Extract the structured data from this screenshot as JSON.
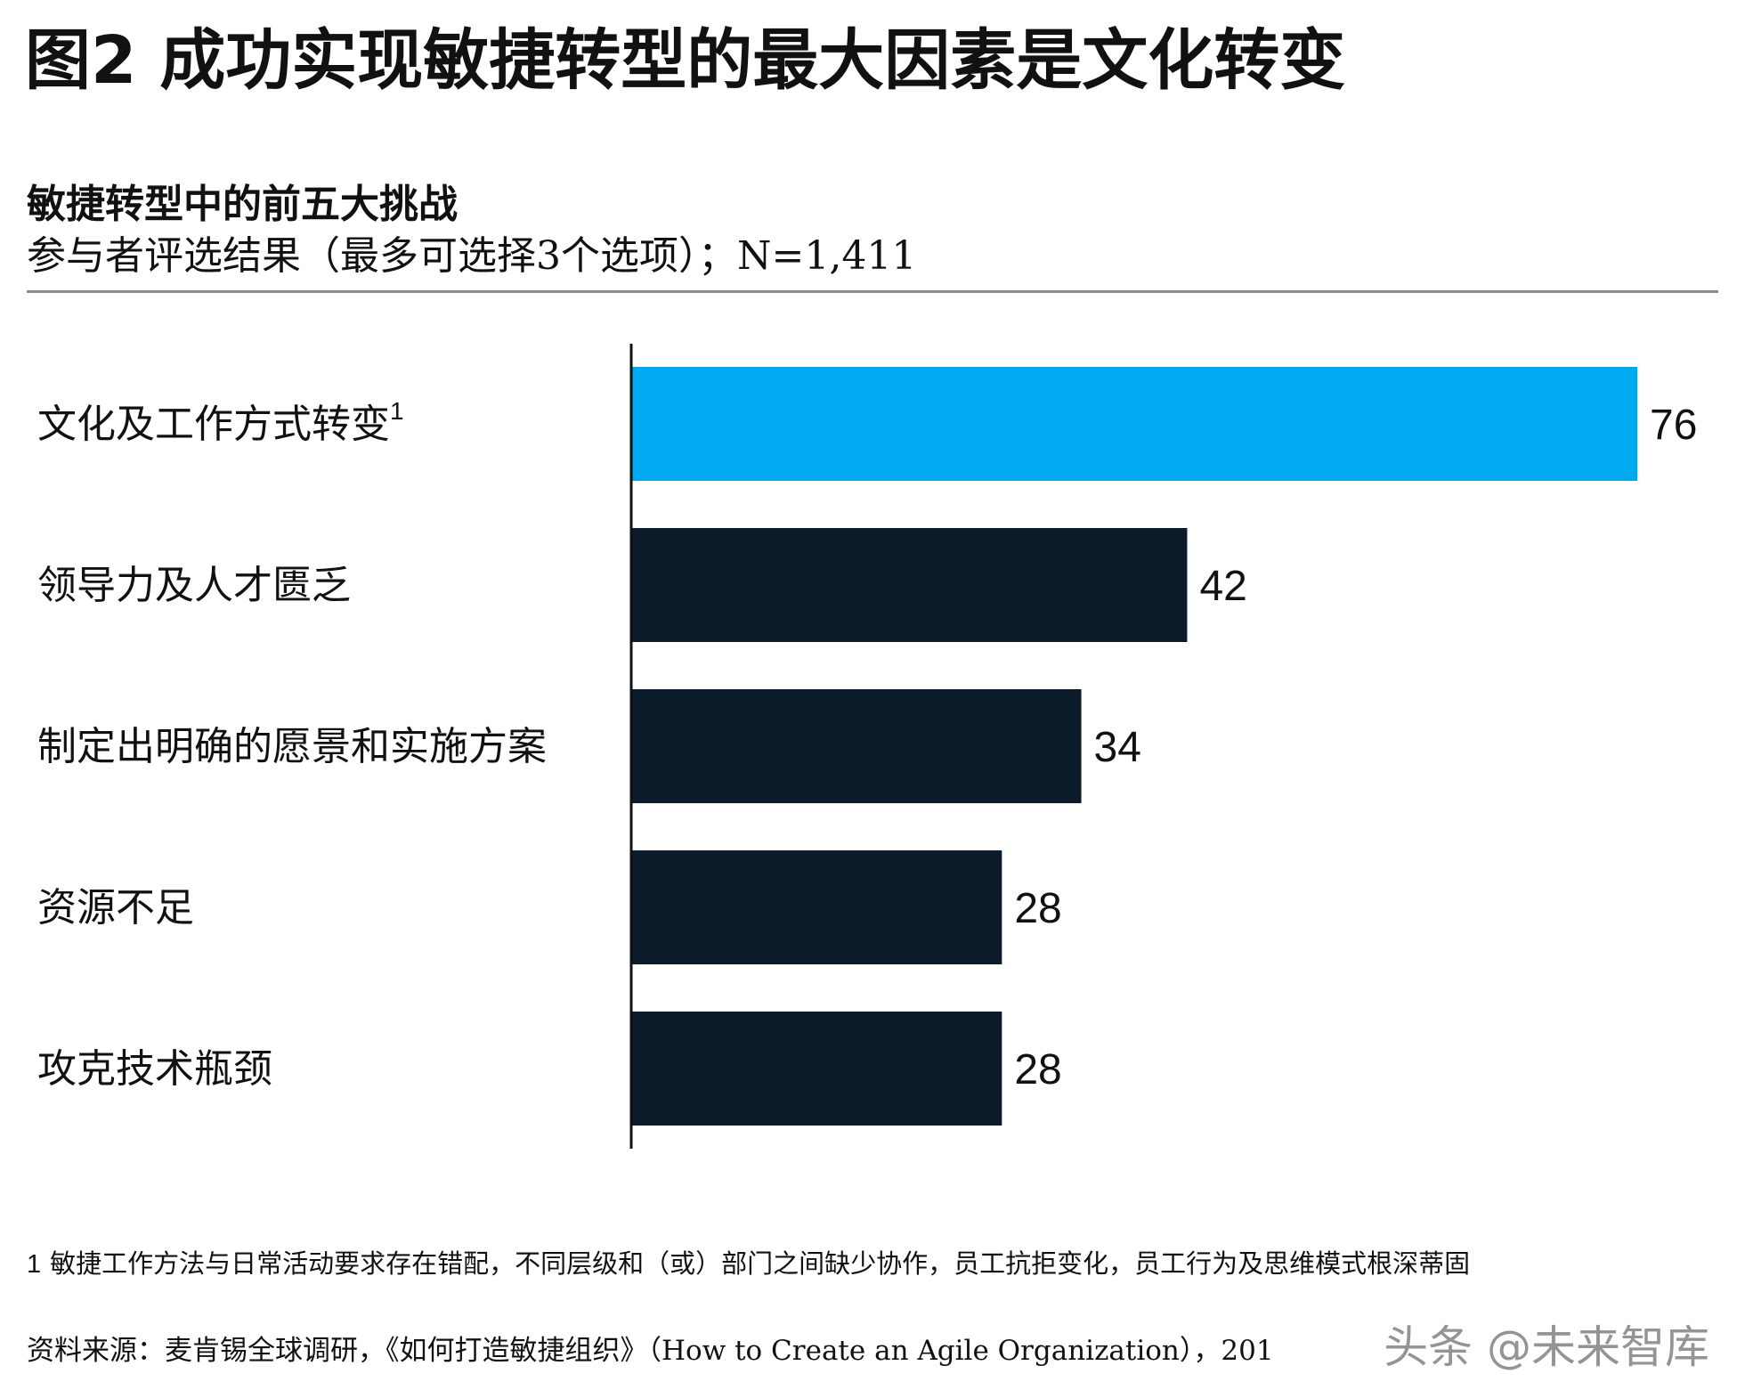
{
  "figure_title": "图2 成功实现敏捷转型的最大因素是文化转变",
  "chart_data": {
    "type": "bar",
    "orientation": "horizontal",
    "title": "敏捷转型中的前五大挑战",
    "subtitle": "参与者评选结果（最多可选择3个选项）；N=1,411",
    "categories": [
      {
        "label": "文化及工作方式转变",
        "superscript": "1"
      },
      {
        "label": "领导力及人才匮乏",
        "superscript": ""
      },
      {
        "label": "制定出明确的愿景和实施方案",
        "superscript": ""
      },
      {
        "label": "资源不足",
        "superscript": ""
      },
      {
        "label": "攻克技术瓶颈",
        "superscript": ""
      }
    ],
    "values": [
      76,
      42,
      34,
      28,
      28
    ],
    "highlight_index": 0,
    "colors": {
      "highlight": "#00A9F0",
      "default": "#0B1B2A",
      "axis": "#111111",
      "rule": "#8C8C8C"
    },
    "xlim": [
      0,
      76
    ],
    "grid": false,
    "legend": "none"
  },
  "footnote": {
    "number": "1",
    "text": "敏捷工作方法与日常活动要求存在错配，不同层级和（或）部门之间缺少协作，员工抗拒变化，员工行为及思维模式根深蒂固"
  },
  "source": "资料来源：麦肯锡全球调研，《如何打造敏捷组织》（How to Create an Agile Organization），201",
  "watermark": "头条 @未来智库"
}
